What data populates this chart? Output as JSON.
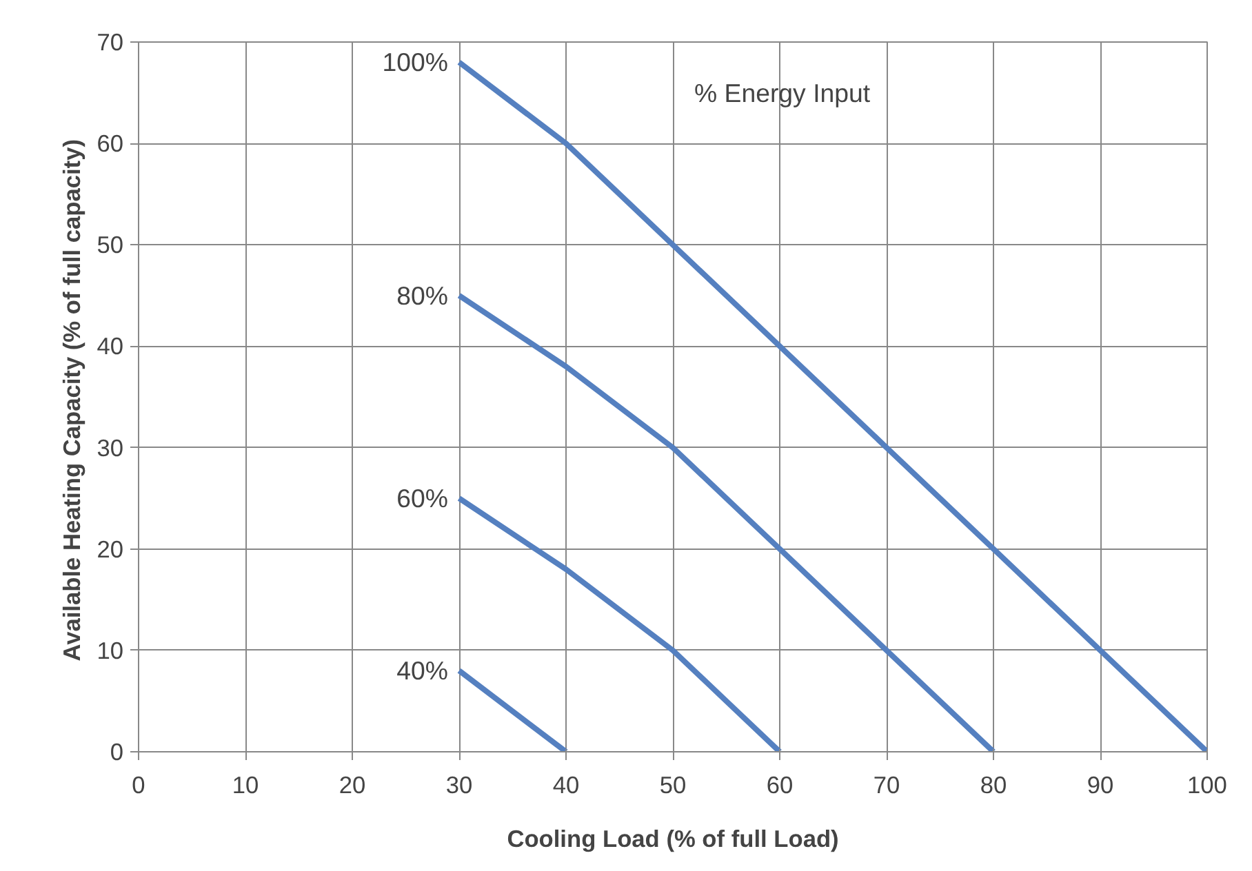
{
  "chart_data": {
    "type": "line",
    "xlabel": "Cooling Load (% of full Load)",
    "ylabel": "Available Heating Capacity  (% of full capacity)",
    "annotations": [
      "% Energy Input"
    ],
    "xlim": [
      0,
      100
    ],
    "ylim": [
      0,
      70
    ],
    "xticks": [
      0,
      10,
      20,
      30,
      40,
      50,
      60,
      70,
      80,
      90,
      100
    ],
    "yticks": [
      0,
      10,
      20,
      30,
      40,
      50,
      60,
      70
    ],
    "grid": true,
    "series": [
      {
        "name": "100%",
        "color": "#5580c0",
        "x": [
          30,
          40,
          50,
          60,
          70,
          80,
          90,
          100
        ],
        "values": [
          68,
          60,
          50,
          40,
          30,
          20,
          10,
          0
        ]
      },
      {
        "name": "80%",
        "color": "#5580c0",
        "x": [
          30,
          40,
          50,
          60,
          70,
          80
        ],
        "values": [
          45,
          38,
          30,
          20,
          10,
          0
        ]
      },
      {
        "name": "60%",
        "color": "#5580c0",
        "x": [
          30,
          40,
          50,
          60
        ],
        "values": [
          25,
          18,
          10,
          0
        ]
      },
      {
        "name": "40%",
        "color": "#5580c0",
        "x": [
          30,
          40
        ],
        "values": [
          8,
          0
        ]
      }
    ]
  }
}
